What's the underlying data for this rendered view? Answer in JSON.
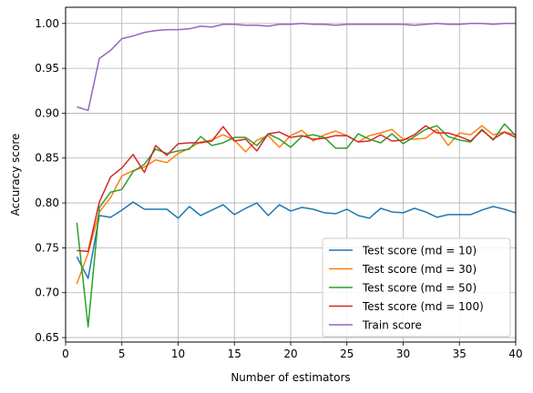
{
  "chart_data": {
    "type": "line",
    "xlabel": "Number of estimators",
    "ylabel": "Accuracy score",
    "xlim": [
      0,
      40
    ],
    "ylim": [
      0.645,
      1.018
    ],
    "xticks": [
      0,
      5,
      10,
      15,
      20,
      25,
      30,
      35,
      40
    ],
    "yticks": [
      0.65,
      0.7,
      0.75,
      0.8,
      0.85,
      0.9,
      0.95,
      1.0
    ],
    "xtick_labels": [
      "0",
      "5",
      "10",
      "15",
      "20",
      "25",
      "30",
      "35",
      "40"
    ],
    "ytick_labels": [
      "0.65",
      "0.70",
      "0.75",
      "0.80",
      "0.85",
      "0.90",
      "0.95",
      "1.00"
    ],
    "grid": true,
    "legend_position": "lower-right",
    "x": [
      1,
      2,
      3,
      4,
      5,
      6,
      7,
      8,
      9,
      10,
      11,
      12,
      13,
      14,
      15,
      16,
      17,
      18,
      19,
      20,
      21,
      22,
      23,
      24,
      25,
      26,
      27,
      28,
      29,
      30,
      31,
      32,
      33,
      34,
      35,
      36,
      37,
      38,
      39,
      40
    ],
    "series": [
      {
        "name": "Test score (md = 10)",
        "color": "#1f77b4",
        "values": [
          0.74,
          0.716,
          0.786,
          0.784,
          0.792,
          0.801,
          0.793,
          0.793,
          0.793,
          0.783,
          0.796,
          0.786,
          0.792,
          0.798,
          0.787,
          0.794,
          0.8,
          0.786,
          0.798,
          0.791,
          0.795,
          0.793,
          0.789,
          0.788,
          0.793,
          0.786,
          0.783,
          0.794,
          0.79,
          0.789,
          0.794,
          0.79,
          0.784,
          0.787,
          0.787,
          0.787,
          0.792,
          0.796,
          0.793,
          0.789
        ]
      },
      {
        "name": "Test score (md = 30)",
        "color": "#ff7f0e",
        "values": [
          0.71,
          0.744,
          0.79,
          0.806,
          0.83,
          0.836,
          0.84,
          0.848,
          0.845,
          0.855,
          0.861,
          0.868,
          0.87,
          0.876,
          0.87,
          0.857,
          0.87,
          0.875,
          0.862,
          0.875,
          0.881,
          0.869,
          0.876,
          0.88,
          0.875,
          0.868,
          0.875,
          0.878,
          0.882,
          0.871,
          0.871,
          0.872,
          0.882,
          0.864,
          0.878,
          0.876,
          0.886,
          0.876,
          0.879,
          0.876
        ]
      },
      {
        "name": "Test score (md = 50)",
        "color": "#2ca02c",
        "values": [
          0.778,
          0.662,
          0.795,
          0.812,
          0.815,
          0.835,
          0.843,
          0.86,
          0.855,
          0.858,
          0.86,
          0.874,
          0.864,
          0.867,
          0.873,
          0.873,
          0.864,
          0.877,
          0.871,
          0.862,
          0.874,
          0.876,
          0.873,
          0.861,
          0.861,
          0.877,
          0.871,
          0.867,
          0.877,
          0.866,
          0.874,
          0.882,
          0.886,
          0.874,
          0.87,
          0.868,
          0.882,
          0.87,
          0.888,
          0.875
        ]
      },
      {
        "name": "Test score (md = 100)",
        "color": "#d62728",
        "values": [
          0.747,
          0.746,
          0.801,
          0.829,
          0.839,
          0.854,
          0.834,
          0.864,
          0.853,
          0.866,
          0.867,
          0.867,
          0.869,
          0.885,
          0.869,
          0.871,
          0.858,
          0.877,
          0.879,
          0.873,
          0.875,
          0.871,
          0.872,
          0.875,
          0.875,
          0.868,
          0.869,
          0.876,
          0.869,
          0.87,
          0.876,
          0.886,
          0.878,
          0.878,
          0.874,
          0.869,
          0.881,
          0.871,
          0.879,
          0.873
        ]
      },
      {
        "name": "Train score",
        "color": "#9467bd",
        "values": [
          0.907,
          0.903,
          0.961,
          0.97,
          0.983,
          0.986,
          0.99,
          0.992,
          0.993,
          0.993,
          0.994,
          0.997,
          0.996,
          0.999,
          0.999,
          0.998,
          0.998,
          0.997,
          0.999,
          0.999,
          1.0,
          0.999,
          0.999,
          0.998,
          0.999,
          0.999,
          0.999,
          0.999,
          0.999,
          0.999,
          0.998,
          0.999,
          1.0,
          0.999,
          0.999,
          1.0,
          1.0,
          0.999,
          1.0,
          1.0
        ]
      }
    ]
  }
}
